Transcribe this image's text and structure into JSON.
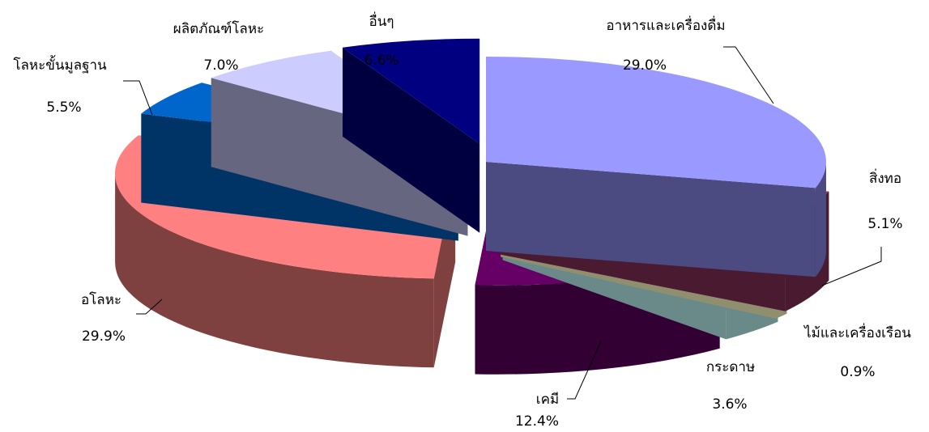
{
  "chart_data": {
    "type": "pie",
    "style": "exploded 3D pie",
    "title": "",
    "slices": [
      {
        "label": "อาหารและเครื่องดื่ม",
        "value_label": "29.0%",
        "value": 29.0,
        "color": "#9999ff",
        "side_color": "#4b4b82"
      },
      {
        "label": "สิ่งทอ",
        "value_label": "5.1%",
        "value": 5.1,
        "color": "#993366",
        "side_color": "#4a1a30"
      },
      {
        "label": "ไม้และเครื่องเรือน",
        "value_label": "0.9%",
        "value": 0.9,
        "color": "#ffffcc",
        "side_color": "#8f8f6f"
      },
      {
        "label": "กระดาษ",
        "value_label": "3.6%",
        "value": 3.6,
        "color": "#ccffff",
        "side_color": "#6a8a8a"
      },
      {
        "label": "เคมี",
        "value_label": "12.4%",
        "value": 12.4,
        "color": "#660066",
        "side_color": "#330033"
      },
      {
        "label": "อโลหะ",
        "value_label": "29.9%",
        "value": 29.9,
        "color": "#ff8080",
        "side_color": "#7f4040"
      },
      {
        "label": "โลหะขั้นมูลฐาน",
        "value_label": "5.5%",
        "value": 5.5,
        "color": "#0066cc",
        "side_color": "#003366"
      },
      {
        "label": "ผลิตภัณฑ์โลหะ",
        "value_label": "7.0%",
        "value": 7.0,
        "color": "#ccccff",
        "side_color": "#666680"
      },
      {
        "label": "อื่นๆ",
        "value_label": "6.6%",
        "value": 6.6,
        "color": "#000080",
        "side_color": "#000040"
      }
    ]
  }
}
